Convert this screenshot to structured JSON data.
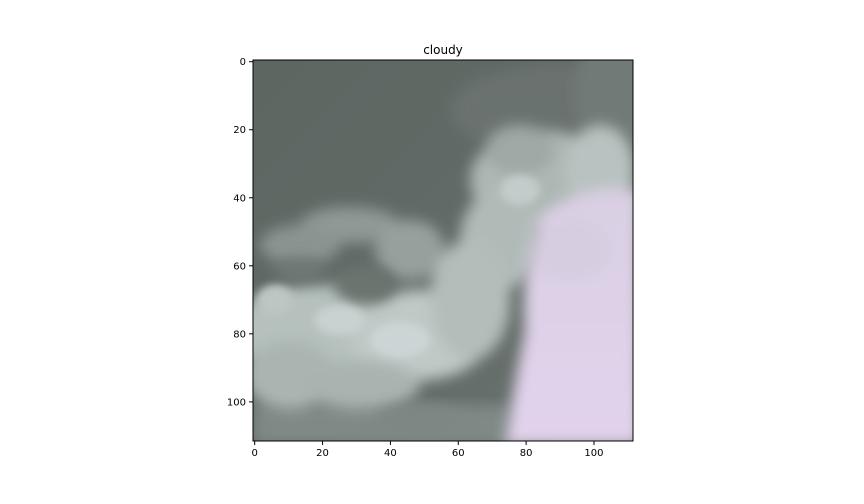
{
  "title": "cloudy",
  "image": {
    "description_colors": {
      "dark_sky": "#5d6662",
      "gray_sky": "#69716d",
      "cloud_light": "#bfcac7",
      "cloud_mid": "#a9b3b0",
      "cloud_pale": "#d3d6da",
      "pink_haze": "#e0d2ea",
      "frame": "#000000"
    }
  },
  "axes": {
    "x_ticks": [
      "0",
      "20",
      "40",
      "60",
      "80",
      "100"
    ],
    "x_values": [
      0,
      20,
      40,
      60,
      80,
      100
    ],
    "y_ticks": [
      "0",
      "20",
      "40",
      "60",
      "80",
      "100"
    ],
    "y_values": [
      0,
      20,
      40,
      60,
      80,
      100
    ],
    "extent": [
      -0.5,
      111.5
    ]
  }
}
